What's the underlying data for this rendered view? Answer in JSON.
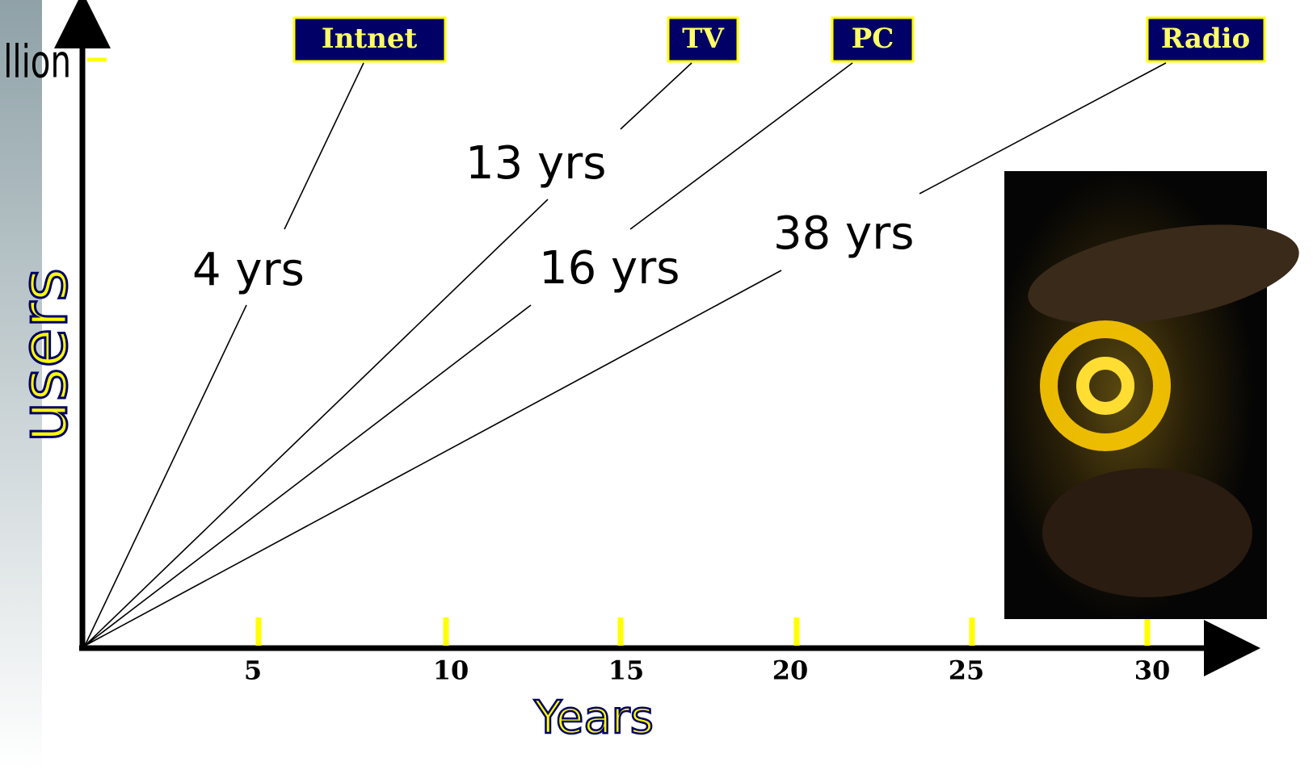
{
  "y_axis_label": "users",
  "y_top_label": "llion",
  "x_axis_label": "Years",
  "x_ticks": [
    "5",
    "10",
    "15",
    "20",
    "25",
    "30"
  ],
  "media": [
    {
      "label": "Intnet",
      "time": "4 yrs"
    },
    {
      "label": "TV",
      "time": "13 yrs"
    },
    {
      "label": "PC",
      "time": "16 yrs"
    },
    {
      "label": "Radio",
      "time": "38 yrs"
    }
  ]
}
